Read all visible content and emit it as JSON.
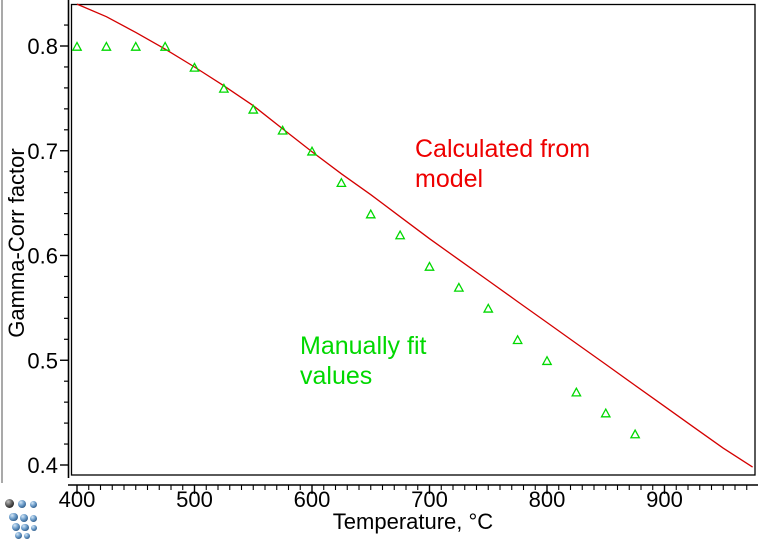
{
  "chart_data": {
    "type": "line",
    "title": "",
    "xlabel": "Temperature, °C",
    "ylabel": "Gamma-Corr factor",
    "x_tick_labels": [
      "400",
      "500",
      "600",
      "700",
      "800",
      "900"
    ],
    "x_major_ticks": [
      400,
      500,
      600,
      700,
      800,
      900
    ],
    "x_minor_step": 10,
    "x_minor_range": [
      410,
      970
    ],
    "x_range": [
      395,
      975
    ],
    "y_tick_labels": [
      "0.4",
      "0.5",
      "0.6",
      "0.7",
      "0.8"
    ],
    "y_major_ticks": [
      0.4,
      0.5,
      0.6,
      0.7,
      0.8
    ],
    "y_minor_step": 0.02,
    "y_minor_range": [
      0.42,
      0.82
    ],
    "y_range": [
      0.39,
      0.84
    ],
    "grid": false,
    "legend_position": "none",
    "series": [
      {
        "name": "Calculated from model",
        "type": "line",
        "color": "#d40000",
        "x": [
          400,
          425,
          450,
          475,
          500,
          525,
          550,
          575,
          600,
          625,
          650,
          675,
          700,
          725,
          750,
          775,
          800,
          825,
          850,
          875,
          900,
          925,
          950,
          975
        ],
        "y": [
          0.84,
          0.828,
          0.813,
          0.797,
          0.78,
          0.762,
          0.743,
          0.721,
          0.699,
          0.678,
          0.658,
          0.637,
          0.616,
          0.596,
          0.576,
          0.556,
          0.536,
          0.516,
          0.496,
          0.476,
          0.456,
          0.436,
          0.416,
          0.398
        ]
      },
      {
        "name": "Manually fit values",
        "type": "scatter",
        "marker": "open-triangle",
        "color": "#00d800",
        "x": [
          400,
          425,
          450,
          475,
          500,
          525,
          550,
          575,
          600,
          625,
          650,
          675,
          700,
          725,
          750,
          775,
          800,
          825,
          850,
          875
        ],
        "y": [
          0.8,
          0.8,
          0.8,
          0.8,
          0.78,
          0.76,
          0.74,
          0.72,
          0.7,
          0.67,
          0.64,
          0.62,
          0.59,
          0.57,
          0.55,
          0.52,
          0.5,
          0.47,
          0.45,
          0.43
        ]
      }
    ],
    "annotations": [
      {
        "name": "model-label",
        "color": "#ee0000",
        "lines": [
          "Calculated from",
          "model"
        ]
      },
      {
        "name": "manual-label",
        "color": "#00d800",
        "lines": [
          "Manually fit",
          "values"
        ]
      }
    ]
  },
  "branding": {
    "icon": "sphere-cluster-logo"
  }
}
